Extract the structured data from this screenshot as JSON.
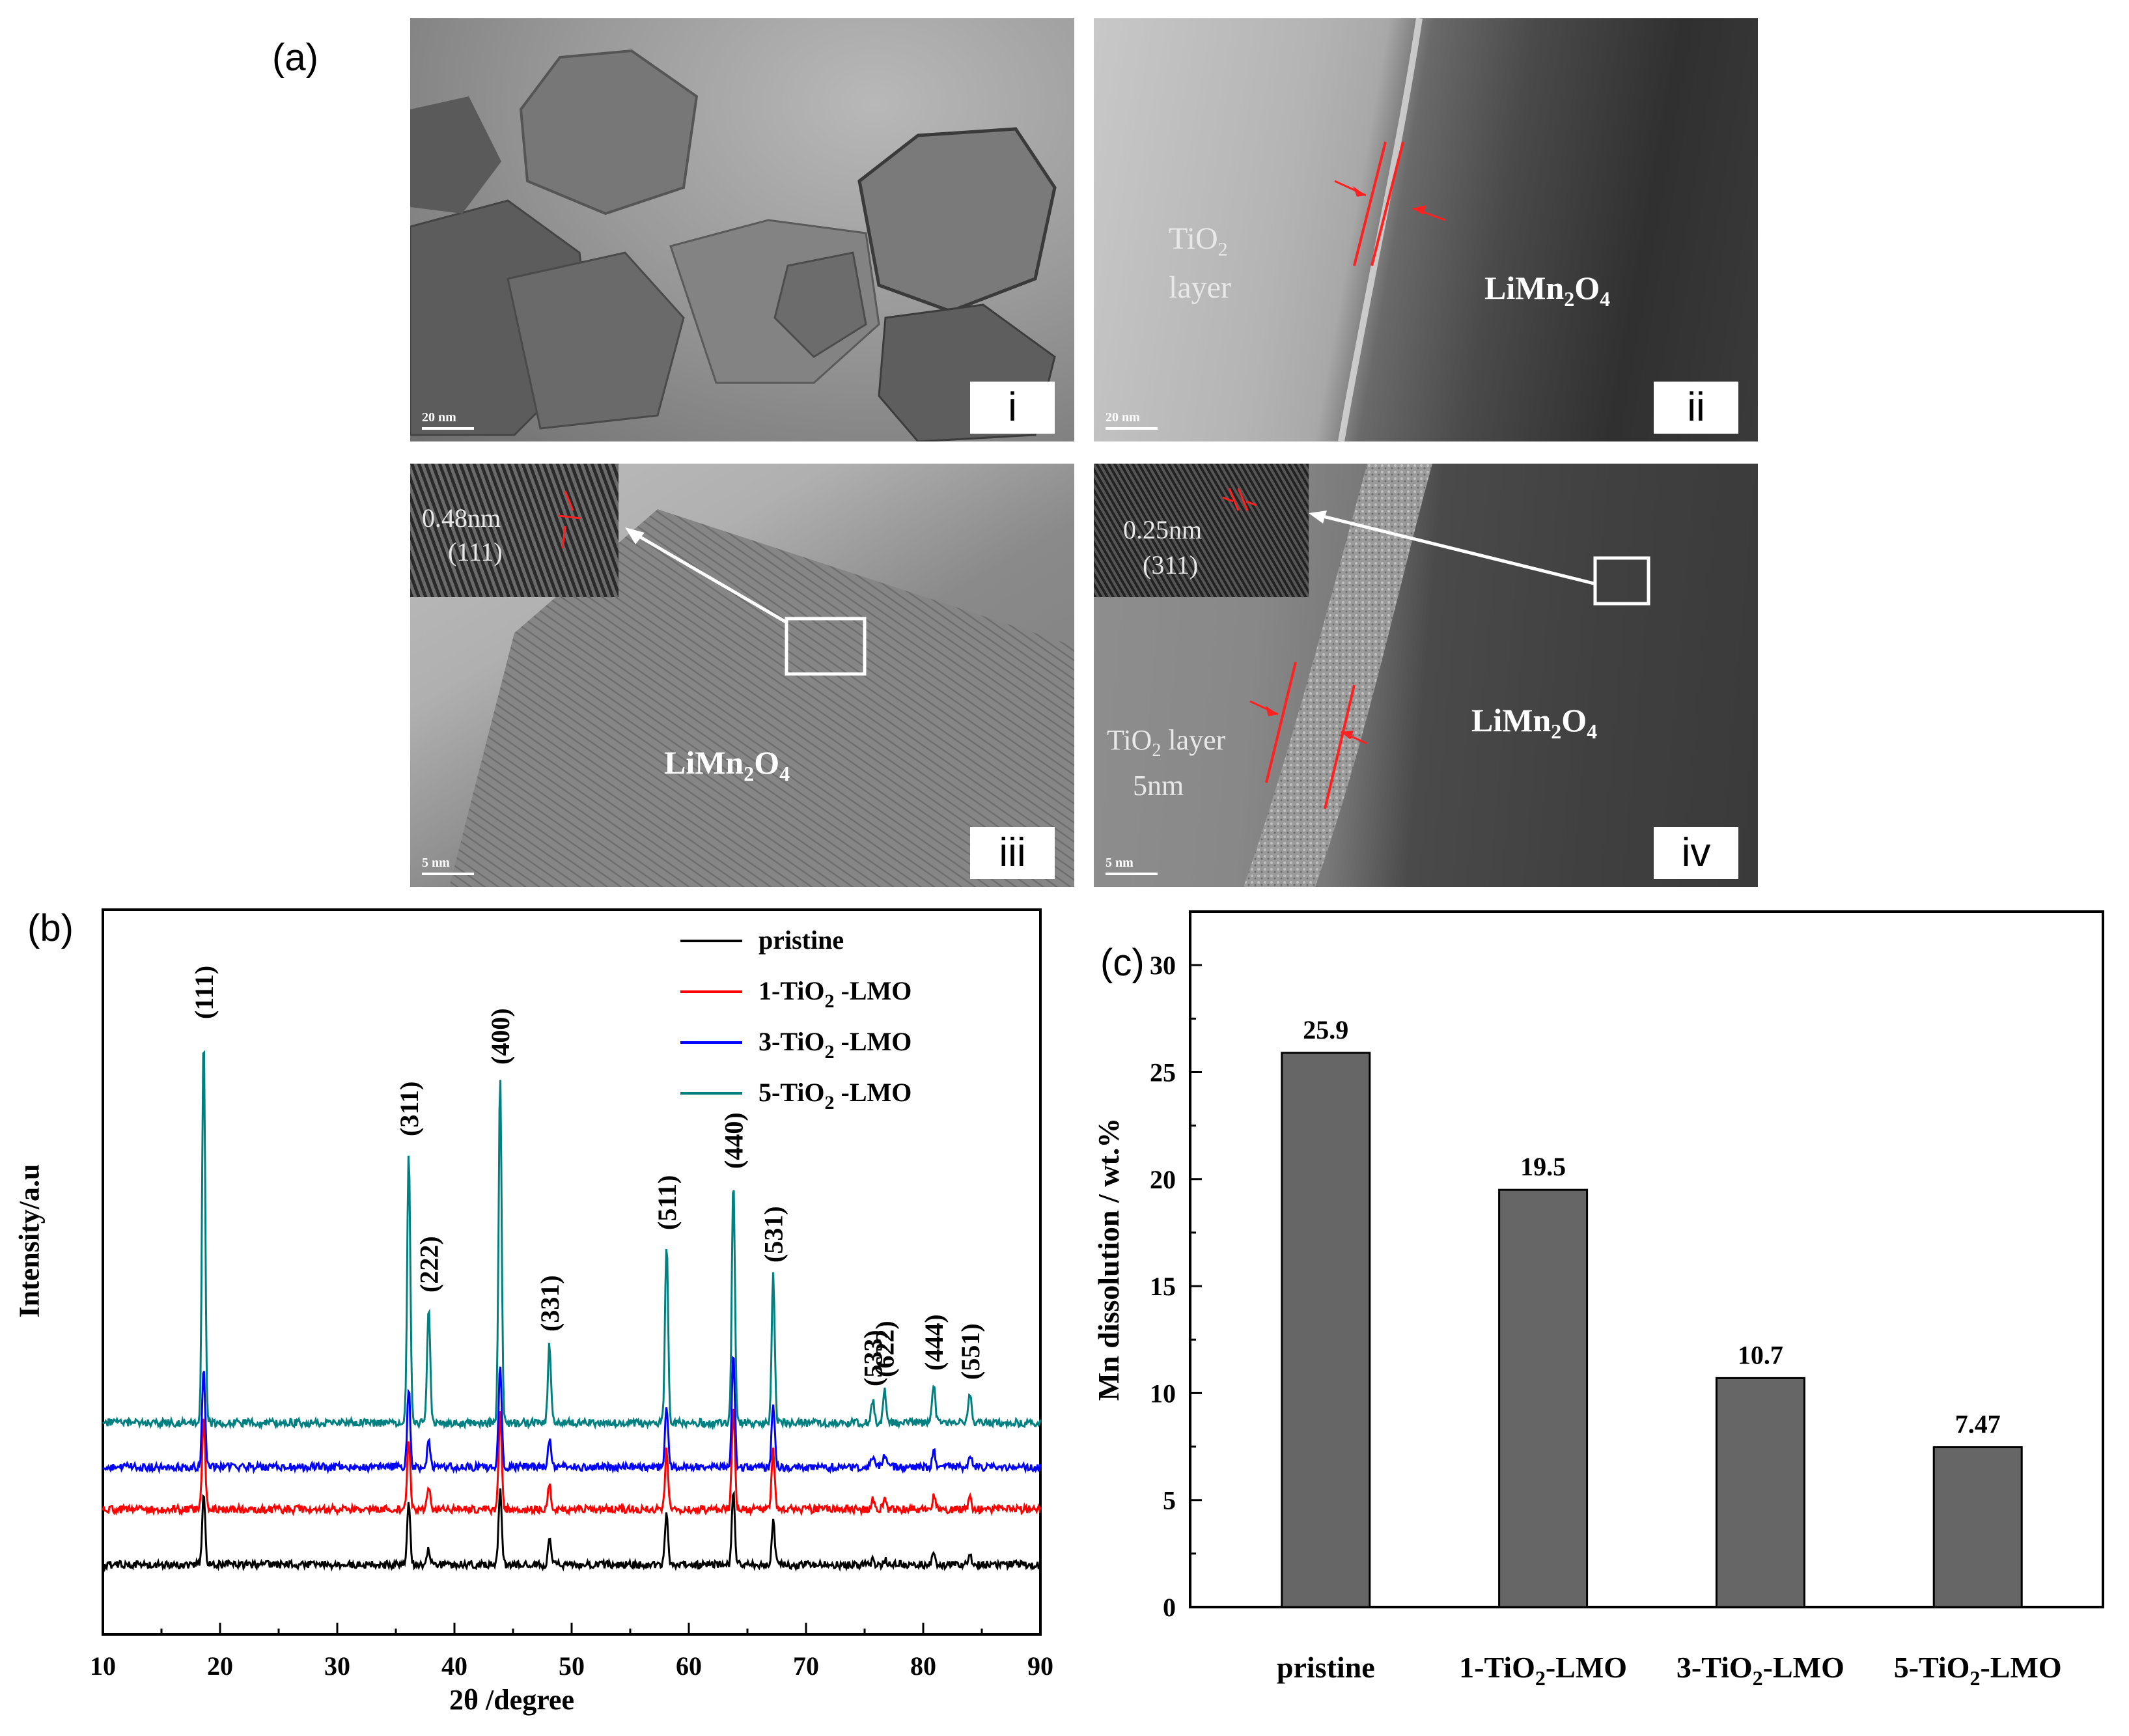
{
  "panel_a": {
    "letter": "(a)",
    "i": {
      "label": "i",
      "scalebar": "20 nm"
    },
    "ii": {
      "label": "ii",
      "scalebar": "20 nm",
      "tio2_line1": "TiO",
      "tio2_sub": "2",
      "tio2_line2": "layer",
      "lmo": "LiMn",
      "lmo_sub1": "2",
      "lmo_o": "O",
      "lmo_sub2": "4"
    },
    "iii": {
      "label": "iii",
      "scalebar": "5 nm",
      "spacing": "0.48nm",
      "plane": "(111)",
      "lmo": "LiMn",
      "lmo_sub1": "2",
      "lmo_o": "O",
      "lmo_sub2": "4"
    },
    "iv": {
      "label": "iv",
      "scalebar": "5 nm",
      "spacing": "0.25nm",
      "plane": "(311)",
      "tio2_line1": "TiO",
      "tio2_sub": "2",
      "tio2_line1b": " layer",
      "tio2_line2": "5nm",
      "lmo": "LiMn",
      "lmo_sub1": "2",
      "lmo_o": "O",
      "lmo_sub2": "4"
    }
  },
  "panel_b": {
    "letter": "(b)",
    "xlabel": "2θ /degree",
    "ylabel": "Intensity/a.u",
    "legend": [
      {
        "text": "pristine",
        "color": "#000000"
      },
      {
        "text": "1-TiO",
        "sub": "2",
        "rest": " -LMO",
        "color": "#ff0000"
      },
      {
        "text": "3-TiO",
        "sub": "2",
        "rest": " -LMO",
        "color": "#0000ff"
      },
      {
        "text": "5-TiO",
        "sub": "2",
        "rest": " -LMO",
        "color": "#008080"
      }
    ],
    "peak_labels": [
      "(111)",
      "(311)",
      "(222)",
      "(400)",
      "(331)",
      "(511)",
      "(440)",
      "(531)",
      "(533)",
      "(622)",
      "(444)",
      "(551)"
    ]
  },
  "panel_c": {
    "letter": "(c)"
  },
  "chart_data": [
    {
      "type": "line",
      "title": "",
      "xlabel": "2θ /degree",
      "ylabel": "Intensity/a.u",
      "xlim": [
        10,
        90
      ],
      "xticks": [
        10,
        20,
        30,
        40,
        50,
        60,
        70,
        80,
        90
      ],
      "peaks": [
        {
          "hkl": "(111)",
          "two_theta": 18.6
        },
        {
          "hkl": "(311)",
          "two_theta": 36.1
        },
        {
          "hkl": "(222)",
          "two_theta": 37.8
        },
        {
          "hkl": "(400)",
          "two_theta": 43.9
        },
        {
          "hkl": "(331)",
          "two_theta": 48.1
        },
        {
          "hkl": "(511)",
          "two_theta": 58.1
        },
        {
          "hkl": "(440)",
          "two_theta": 63.8
        },
        {
          "hkl": "(531)",
          "two_theta": 67.2
        },
        {
          "hkl": "(533)",
          "two_theta": 75.7
        },
        {
          "hkl": "(622)",
          "two_theta": 76.7
        },
        {
          "hkl": "(444)",
          "two_theta": 80.9
        },
        {
          "hkl": "(551)",
          "two_theta": 84.0
        }
      ],
      "series": [
        {
          "name": "pristine",
          "color": "#000000",
          "offset": 0,
          "heights": [
            0.55,
            0.48,
            0.12,
            0.58,
            0.2,
            0.38,
            0.55,
            0.34,
            0.03,
            0.04,
            0.07,
            0.06
          ]
        },
        {
          "name": "1-TiO2 -LMO",
          "color": "#ff0000",
          "offset": 1,
          "heights": [
            0.7,
            0.55,
            0.18,
            0.75,
            0.2,
            0.45,
            0.8,
            0.45,
            0.07,
            0.08,
            0.1,
            0.08
          ]
        },
        {
          "name": "3-TiO2 -LMO",
          "color": "#0000ff",
          "offset": 2,
          "heights": [
            0.75,
            0.6,
            0.2,
            0.8,
            0.22,
            0.48,
            0.85,
            0.48,
            0.08,
            0.1,
            0.12,
            0.09
          ]
        },
        {
          "name": "5-TiO2 -LMO",
          "color": "#008080",
          "offset": 3,
          "heights": [
            3.0,
            2.1,
            0.9,
            2.65,
            0.6,
            1.38,
            1.85,
            1.13,
            0.18,
            0.25,
            0.3,
            0.23
          ]
        }
      ]
    },
    {
      "type": "bar",
      "title": "",
      "xlabel": "",
      "ylabel": "Mn dissolution / wt.%",
      "categories": [
        "pristine",
        "1-TiO2-LMO",
        "3-TiO2-LMO",
        "5-TiO2-LMO"
      ],
      "category_labels": [
        {
          "main": "pristine",
          "sub": "",
          "rest": ""
        },
        {
          "main": "1-TiO",
          "sub": "2",
          "rest": "-LMO"
        },
        {
          "main": "3-TiO",
          "sub": "2",
          "rest": "-LMO"
        },
        {
          "main": "5-TiO",
          "sub": "2",
          "rest": "-LMO"
        }
      ],
      "values": [
        25.9,
        19.5,
        10.7,
        7.47
      ],
      "value_labels": [
        "25.9",
        "19.5",
        "10.7",
        "7.47"
      ],
      "ylim": [
        0,
        32.5
      ],
      "yticks": [
        0,
        5,
        10,
        15,
        20,
        25,
        30
      ],
      "bar_color": "#666666"
    }
  ]
}
